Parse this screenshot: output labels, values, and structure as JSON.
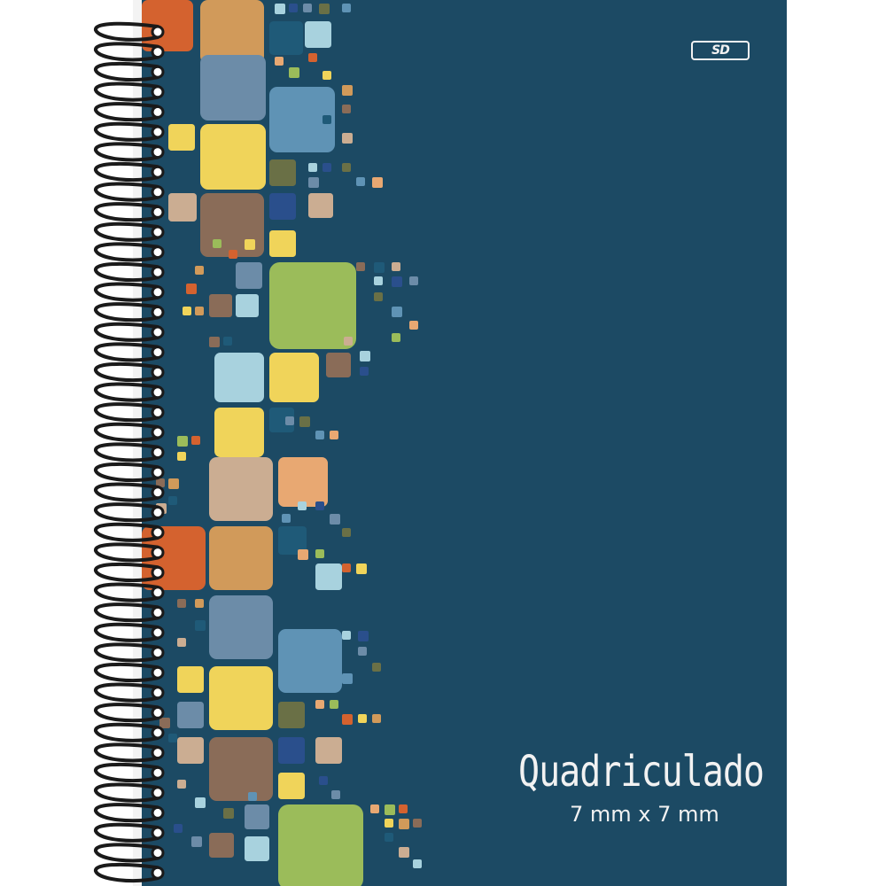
{
  "cover": {
    "title": "Quadriculado",
    "subtitle": "7 mm x 7 mm",
    "brand": "SD",
    "background_color": "#1c4a64"
  },
  "binding": {
    "type": "spiral",
    "color": "#1a1a1a"
  },
  "palette": [
    "#d4622f",
    "#d19a5a",
    "#1f5a78",
    "#a8d2de",
    "#6c8ca8",
    "#5f93b5",
    "#9bbc5a",
    "#f0d45a",
    "#8a6c58",
    "#cbad92",
    "#2a4f8c",
    "#6a7046",
    "#e8a872"
  ]
}
